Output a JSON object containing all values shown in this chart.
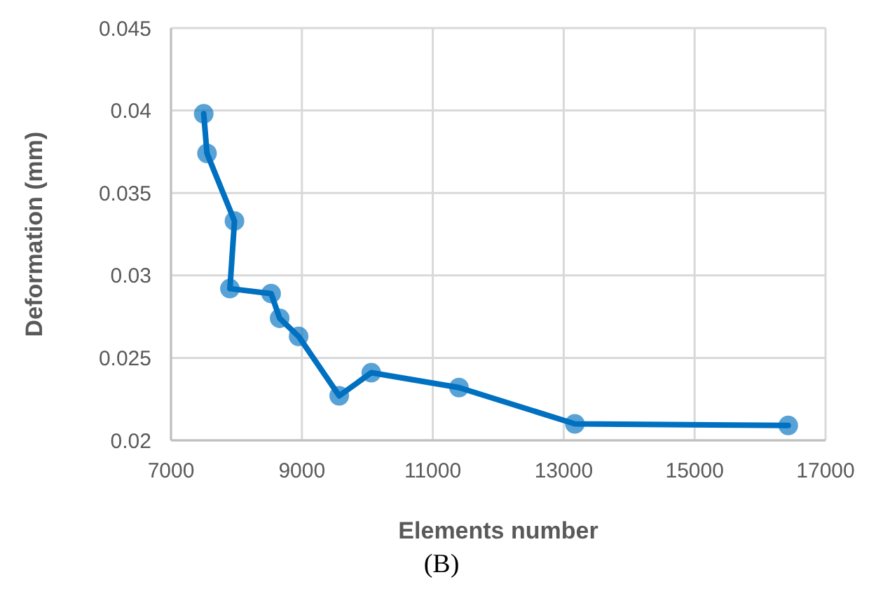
{
  "chart_data": {
    "type": "line",
    "xlabel": "Elements number",
    "ylabel": "Deformation (mm)",
    "annotations": [
      "(B)"
    ],
    "x": [
      7500,
      7550,
      7970,
      7900,
      8530,
      8660,
      8950,
      9570,
      10060,
      11400,
      13170,
      16430
    ],
    "series": [
      {
        "color": "#0070c0",
        "values": [
          0.0398,
          0.0374,
          0.0333,
          0.0292,
          0.0289,
          0.0274,
          0.0263,
          0.0227,
          0.0241,
          0.0232,
          0.021,
          0.0209
        ]
      }
    ],
    "xlim": [
      7000,
      17000
    ],
    "xticks": [
      7000,
      9000,
      11000,
      13000,
      15000,
      17000
    ],
    "ylim": [
      0.02,
      0.045
    ],
    "yticks": [
      0.02,
      0.025,
      0.03,
      0.035,
      0.04,
      0.045
    ],
    "grid": true,
    "marker": "circle",
    "line_style": "solid"
  }
}
